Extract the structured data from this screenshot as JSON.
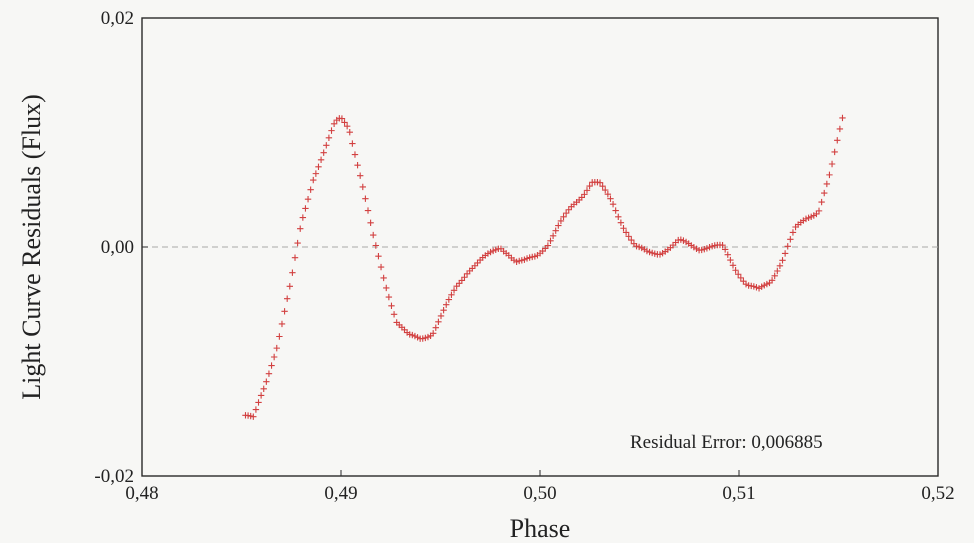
{
  "chart_data": {
    "type": "scatter",
    "xlabel": "Phase",
    "ylabel": "Light Curve Residuals (Flux)",
    "xlim": [
      0.48,
      0.52
    ],
    "ylim": [
      -0.02,
      0.02
    ],
    "x_ticks": [
      {
        "value": 0.48,
        "label": "0,48"
      },
      {
        "value": 0.49,
        "label": "0,49"
      },
      {
        "value": 0.5,
        "label": "0,50"
      },
      {
        "value": 0.51,
        "label": "0,51"
      },
      {
        "value": 0.52,
        "label": "0,52"
      }
    ],
    "y_ticks": [
      {
        "value": -0.02,
        "label": "-0,02"
      },
      {
        "value": 0.0,
        "label": "0,00"
      },
      {
        "value": 0.02,
        "label": "0,02"
      }
    ],
    "reference_line": {
      "y": 0.0,
      "style": "dashed",
      "color": "#a8a8a8"
    },
    "annotation": "Residual Error: 0,006885",
    "marker": "plus",
    "marker_color": "#d24040",
    "grid": false,
    "curve_knots": [
      [
        0.4852,
        -0.0147
      ],
      [
        0.4856,
        -0.015
      ],
      [
        0.4862,
        -0.012
      ],
      [
        0.4868,
        -0.0085
      ],
      [
        0.4875,
        -0.003
      ],
      [
        0.488,
        0.002
      ],
      [
        0.4886,
        0.006
      ],
      [
        0.4892,
        0.0085
      ],
      [
        0.4897,
        0.0108
      ],
      [
        0.49,
        0.0113
      ],
      [
        0.4904,
        0.0105
      ],
      [
        0.491,
        0.006
      ],
      [
        0.4916,
        0.001
      ],
      [
        0.4922,
        -0.003
      ],
      [
        0.4928,
        -0.0065
      ],
      [
        0.4934,
        -0.0078
      ],
      [
        0.494,
        -0.008
      ],
      [
        0.4946,
        -0.0075
      ],
      [
        0.4952,
        -0.0055
      ],
      [
        0.4958,
        -0.0035
      ],
      [
        0.4964,
        -0.002
      ],
      [
        0.497,
        -0.0012
      ],
      [
        0.4976,
        -0.0005
      ],
      [
        0.498,
        0.0
      ],
      [
        0.4984,
        -0.0005
      ],
      [
        0.4988,
        -0.0013
      ],
      [
        0.4992,
        -0.0013
      ],
      [
        0.4998,
        -0.0008
      ],
      [
        0.5004,
        0.0003
      ],
      [
        0.501,
        0.002
      ],
      [
        0.5016,
        0.0035
      ],
      [
        0.5022,
        0.0047
      ],
      [
        0.5026,
        0.0057
      ],
      [
        0.503,
        0.0055
      ],
      [
        0.5036,
        0.004
      ],
      [
        0.5042,
        0.0018
      ],
      [
        0.5048,
        0.0
      ],
      [
        0.5054,
        -0.0005
      ],
      [
        0.506,
        -0.0005
      ],
      [
        0.5066,
        0.0
      ],
      [
        0.507,
        0.0005
      ],
      [
        0.5074,
        0.0003
      ],
      [
        0.508,
        -0.0001
      ],
      [
        0.5086,
        0.0
      ],
      [
        0.5092,
        0.0
      ],
      [
        0.5098,
        -0.0018
      ],
      [
        0.5104,
        -0.0033
      ],
      [
        0.511,
        -0.0038
      ],
      [
        0.5116,
        -0.003
      ],
      [
        0.5122,
        -0.001
      ],
      [
        0.5128,
        0.0015
      ],
      [
        0.5134,
        0.0025
      ],
      [
        0.514,
        0.0032
      ],
      [
        0.5146,
        0.0065
      ],
      [
        0.5152,
        0.0112
      ]
    ]
  }
}
